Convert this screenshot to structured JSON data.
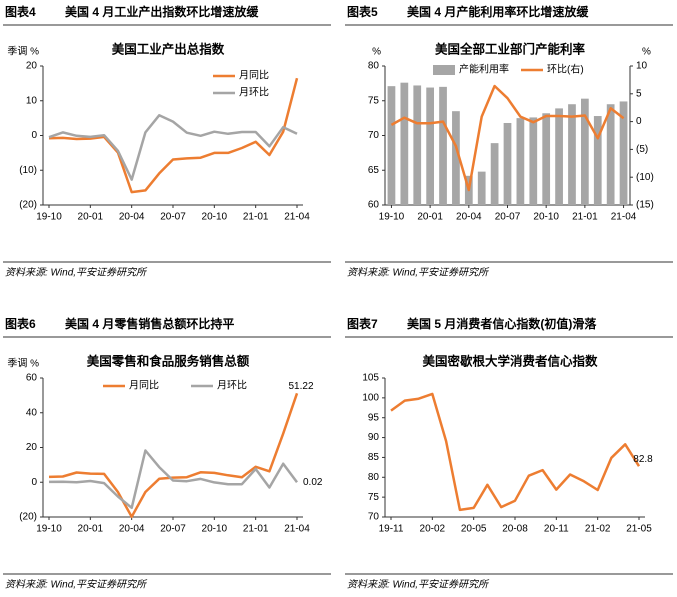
{
  "chart_data": [
    {
      "type": "line",
      "figure_label": "图表4",
      "caption": "美国 4 月工业产出指数环比增速放缓",
      "title": "美国工业产出总指数",
      "y_unit": "季调 %",
      "source": "资料来源: Wind,平安证券研究所",
      "categories": [
        "19-10",
        null,
        null,
        "20-01",
        null,
        null,
        "20-04",
        null,
        null,
        "20-07",
        null,
        null,
        "20-10",
        null,
        null,
        "21-01",
        null,
        null,
        "21-04"
      ],
      "series": [
        {
          "name": "月同比",
          "color": "#ed7d31",
          "values": [
            -0.8,
            -0.7,
            -1.0,
            -0.9,
            -0.4,
            -4.9,
            -16.3,
            -15.8,
            -10.9,
            -6.9,
            -6.6,
            -6.4,
            -5.0,
            -5.0,
            -3.6,
            -1.8,
            -5.6,
            1.1,
            16.5
          ]
        },
        {
          "name": "月环比",
          "color": "#a5a5a5",
          "values": [
            -0.5,
            0.9,
            -0.1,
            -0.4,
            0.1,
            -4.4,
            -12.7,
            0.9,
            5.8,
            4.0,
            0.8,
            -0.1,
            1.1,
            0.5,
            1.0,
            1.0,
            -3.1,
            2.4,
            0.5
          ]
        }
      ],
      "ylim": [
        -20,
        20
      ],
      "yticks": [
        {
          "value": -20,
          "label": "(20)"
        },
        {
          "value": -10,
          "label": "(10)"
        },
        0,
        10,
        20
      ],
      "legend": "upper right"
    },
    {
      "type": "combo",
      "figure_label": "图表5",
      "caption": "美国 4 月产能利用率环比增速放缓",
      "title": "美国全部工业部门产能利率",
      "y_unit": "%",
      "y2_unit": "%",
      "source": "资料来源: Wind,平安证券研究所",
      "categories": [
        "19-10",
        null,
        null,
        "20-01",
        null,
        null,
        "20-04",
        null,
        null,
        "20-07",
        null,
        null,
        "20-10",
        null,
        null,
        "21-01",
        null,
        null,
        "21-04"
      ],
      "series": [
        {
          "name": "产能利用率",
          "color": "#a6a6a6",
          "kind": "bar",
          "values": [
            77.1,
            77.6,
            77.2,
            76.9,
            77.0,
            73.5,
            64.2,
            64.8,
            68.9,
            71.8,
            72.5,
            72.6,
            73.2,
            73.9,
            74.5,
            75.3,
            72.8,
            74.5,
            74.9
          ]
        },
        {
          "name": "环比(右)",
          "color": "#ed7d31",
          "kind": "line",
          "axis": "y2",
          "values": [
            -0.6,
            0.7,
            -0.3,
            -0.3,
            0.0,
            -4.4,
            -12.3,
            0.9,
            6.4,
            4.2,
            0.9,
            -0.1,
            1.0,
            1.0,
            0.9,
            1.1,
            -3.0,
            2.4,
            0.6
          ]
        }
      ],
      "ylim": [
        60,
        80
      ],
      "yticks": [
        60,
        65,
        70,
        75,
        80
      ],
      "y2lim": [
        -15,
        10
      ],
      "y2ticks": [
        {
          "value": -15,
          "label": "(15)"
        },
        {
          "value": -10,
          "label": "(10)"
        },
        {
          "value": -5,
          "label": "(5)"
        },
        0,
        5,
        10
      ],
      "legend": "upper center"
    },
    {
      "type": "line",
      "figure_label": "图表6",
      "caption": "美国 4 月零售销售总额环比持平",
      "title": "美国零售和食品服务销售总额",
      "y_unit": "季调 %",
      "source": "资料来源: Wind,平安证券研究所",
      "categories": [
        "19-10",
        null,
        null,
        "20-01",
        null,
        null,
        "20-04",
        null,
        null,
        "20-07",
        null,
        null,
        "20-10",
        null,
        null,
        "21-01",
        null,
        null,
        "21-04"
      ],
      "series": [
        {
          "name": "月同比",
          "color": "#ed7d31",
          "values": [
            3.1,
            3.3,
            5.6,
            5.0,
            4.8,
            -5.6,
            -19.9,
            -5.6,
            2.0,
            2.7,
            2.9,
            5.7,
            5.4,
            4.0,
            2.9,
            8.9,
            6.3,
            28.0,
            51.22
          ]
        },
        {
          "name": "月环比",
          "color": "#a5a5a5",
          "values": [
            0.2,
            0.3,
            0.0,
            0.7,
            -0.5,
            -8.2,
            -14.7,
            18.3,
            8.7,
            1.0,
            0.6,
            1.9,
            -0.1,
            -1.2,
            -1.1,
            7.6,
            -3.0,
            10.7,
            0.02
          ]
        }
      ],
      "ylim": [
        -20,
        60
      ],
      "yticks": [
        {
          "value": -20,
          "label": "(20)"
        },
        0,
        20,
        40,
        60
      ],
      "legend": "upper center",
      "data_labels": "last"
    },
    {
      "type": "line",
      "figure_label": "图表7",
      "caption": "美国 5 月消费者信心指数(初值)滑落",
      "title": "美国密歇根大学消费者信心指数",
      "source": "资料来源: Wind,平安证券研究所",
      "categories": [
        "19-11",
        null,
        null,
        "20-02",
        null,
        null,
        "20-05",
        null,
        null,
        "20-08",
        null,
        null,
        "20-11",
        null,
        null,
        "21-02",
        null,
        null,
        "21-05"
      ],
      "series": [
        {
          "color": "#ed7d31",
          "values": [
            96.8,
            99.3,
            99.8,
            101.0,
            89.1,
            71.8,
            72.3,
            78.1,
            72.5,
            74.1,
            80.4,
            81.8,
            76.9,
            80.7,
            79.0,
            76.8,
            84.9,
            88.3,
            82.8
          ]
        }
      ],
      "ylim": [
        70,
        105
      ],
      "yticks": [
        70,
        75,
        80,
        85,
        90,
        95,
        100,
        105
      ],
      "data_labels": "last"
    }
  ]
}
